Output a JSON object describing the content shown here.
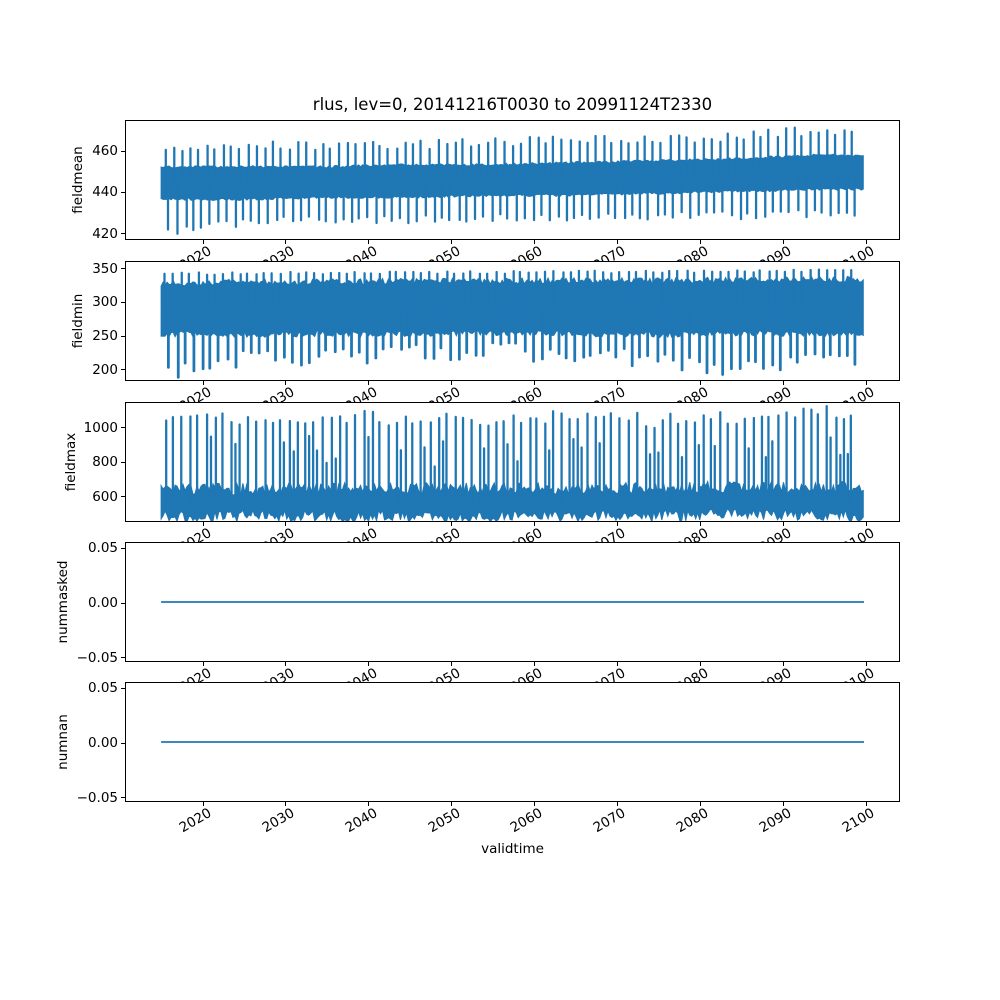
{
  "title": "rlus, lev=0, 20141216T0030 to 20991124T2330",
  "chart_data": {
    "type": "line",
    "title": "rlus, lev=0, 20141216T0030 to 20991124T2330",
    "xlabel": "validtime",
    "line_color": "#1f77b4",
    "legend": "none",
    "grid": false,
    "x": {
      "lim": [
        2010.71,
        2104.15
      ],
      "data_start": 2014.96,
      "data_end": 2099.92,
      "ticks": [
        2020,
        2030,
        2040,
        2050,
        2060,
        2070,
        2080,
        2090,
        2100
      ],
      "tick_labels": [
        "2020",
        "2030",
        "2040",
        "2050",
        "2060",
        "2070",
        "2080",
        "2090",
        "2100"
      ]
    },
    "panels": [
      {
        "ylabel": "fieldmean",
        "ylim": [
          416.4,
          474.6
        ],
        "yticks": [
          420,
          440,
          460
        ],
        "ytick_labels": [
          "420",
          "440",
          "460"
        ],
        "series": {
          "kind": "oscillation",
          "description": "annual oscillation of global-mean rlus, dense band with yearly up/down spikes, slow upward trend",
          "control_years": [
            2015,
            2025,
            2035,
            2045,
            2055,
            2065,
            2075,
            2085,
            2095,
            2100
          ],
          "band_top": [
            452,
            452,
            452,
            453,
            453,
            454,
            455,
            456,
            458,
            457
          ],
          "band_bottom": [
            436,
            436,
            437,
            437,
            438,
            438,
            439,
            440,
            441,
            441
          ],
          "spike_top": [
            462,
            462,
            463,
            463,
            464,
            465,
            466,
            467,
            470,
            469
          ],
          "spike_bottom": [
            420,
            425,
            426,
            426,
            427,
            427,
            428,
            428,
            429,
            429
          ],
          "spike_top_jitter": 2.5,
          "spike_bottom_jitter": 2,
          "band_jitter": 1.2
        }
      },
      {
        "ylabel": "fieldmin",
        "ylim": [
          182,
          360
        ],
        "yticks": [
          200,
          250,
          300,
          350
        ],
        "ytick_labels": [
          "200",
          "250",
          "300",
          "350"
        ],
        "series": {
          "kind": "oscillation",
          "description": "field minimum: solid band ~250-335 with uniform up spikes to ~345 and irregular deep down spikes to ~190-260",
          "control_years": [
            2015,
            2025,
            2035,
            2045,
            2055,
            2065,
            2075,
            2085,
            2095,
            2100
          ],
          "band_top": [
            328,
            330,
            330,
            331,
            331,
            332,
            332,
            333,
            334,
            334
          ],
          "band_bottom": [
            252,
            250,
            252,
            251,
            253,
            252,
            250,
            253,
            251,
            252
          ],
          "spike_top": [
            342,
            343,
            343,
            344,
            344,
            345,
            345,
            346,
            347,
            347
          ],
          "spike_bottom": [
            196,
            214,
            218,
            224,
            226,
            220,
            212,
            200,
            214,
            218
          ],
          "spike_top_jitter": 2,
          "spike_bottom_jitter": 14,
          "band_jitter": 3
        }
      },
      {
        "ylabel": "fieldmax",
        "ylim": [
          448,
          1142
        ],
        "yticks": [
          600,
          800,
          1000
        ],
        "ytick_labels": [
          "600",
          "800",
          "1000"
        ],
        "series": {
          "kind": "oscillation",
          "description": "field maximum: solid base band ~480-650 with tall yearly up spikes reaching ~900-1110, slight base bumps near 2082-2089",
          "control_years": [
            2015,
            2025,
            2035,
            2045,
            2055,
            2065,
            2075,
            2085,
            2095,
            2100
          ],
          "band_top": [
            640,
            635,
            640,
            638,
            640,
            638,
            640,
            650,
            645,
            645
          ],
          "band_bottom": [
            478,
            477,
            477,
            477,
            477,
            477,
            477,
            490,
            481,
            479
          ],
          "spike_top": [
            1075,
            1040,
            1075,
            1030,
            1045,
            1055,
            1035,
            1050,
            1090,
            1060
          ],
          "spike_bottom": null,
          "spike_top_jitter": 45,
          "spike_bottom_jitter": 0,
          "band_jitter": 6
        }
      },
      {
        "ylabel": "nummasked",
        "ylim": [
          -0.055,
          0.055
        ],
        "yticks": [
          0.05,
          0.0,
          -0.05
        ],
        "ytick_labels": [
          "0.05",
          "0.00",
          "−0.05"
        ],
        "series": {
          "kind": "constant",
          "value": 0.0,
          "description": "constant zero masked points"
        }
      },
      {
        "ylabel": "numnan",
        "ylim": [
          -0.055,
          0.055
        ],
        "yticks": [
          0.05,
          0.0,
          -0.05
        ],
        "ytick_labels": [
          "0.05",
          "0.00",
          "−0.05"
        ],
        "series": {
          "kind": "constant",
          "value": 0.0,
          "description": "constant zero NaN count"
        }
      }
    ]
  }
}
